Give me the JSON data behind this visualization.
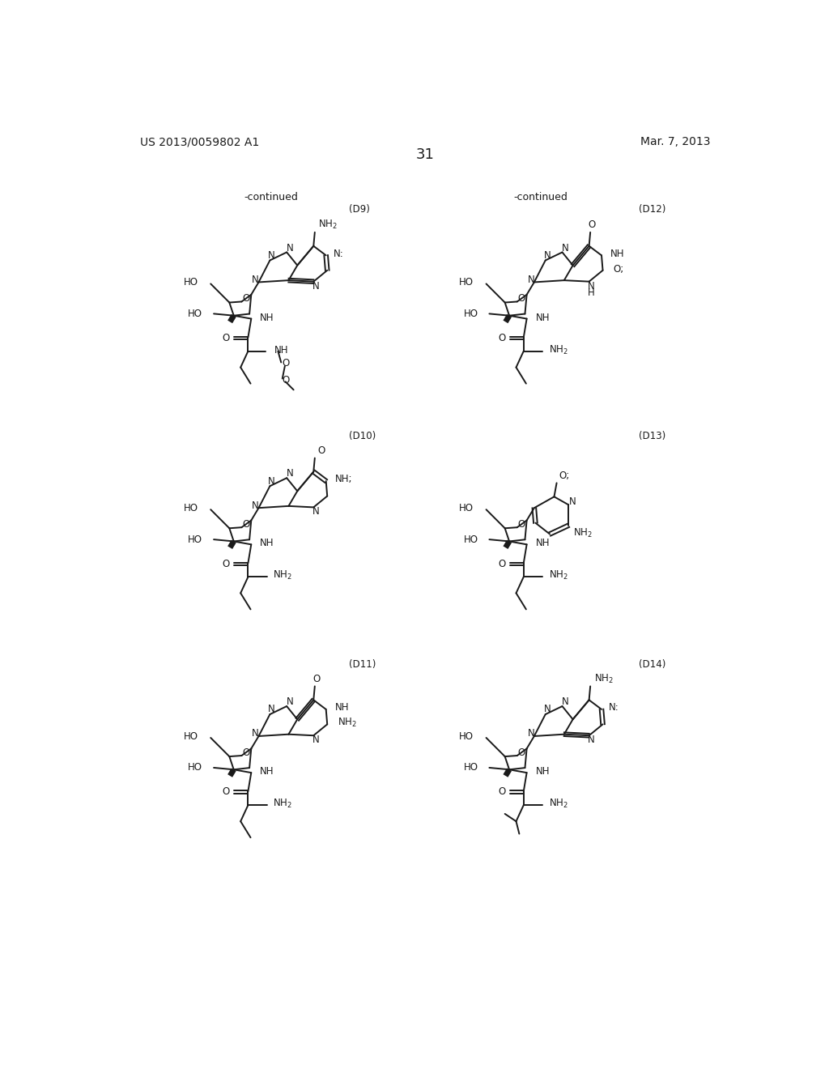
{
  "bg": "#ffffff",
  "lc": "#1a1a1a",
  "lw": 1.4,
  "blw": 5.0,
  "fs": 9.0,
  "fss": 8.5,
  "page_left": "US 2013/0059802 A1",
  "page_right": "Mar. 7, 2013",
  "page_num": "31"
}
